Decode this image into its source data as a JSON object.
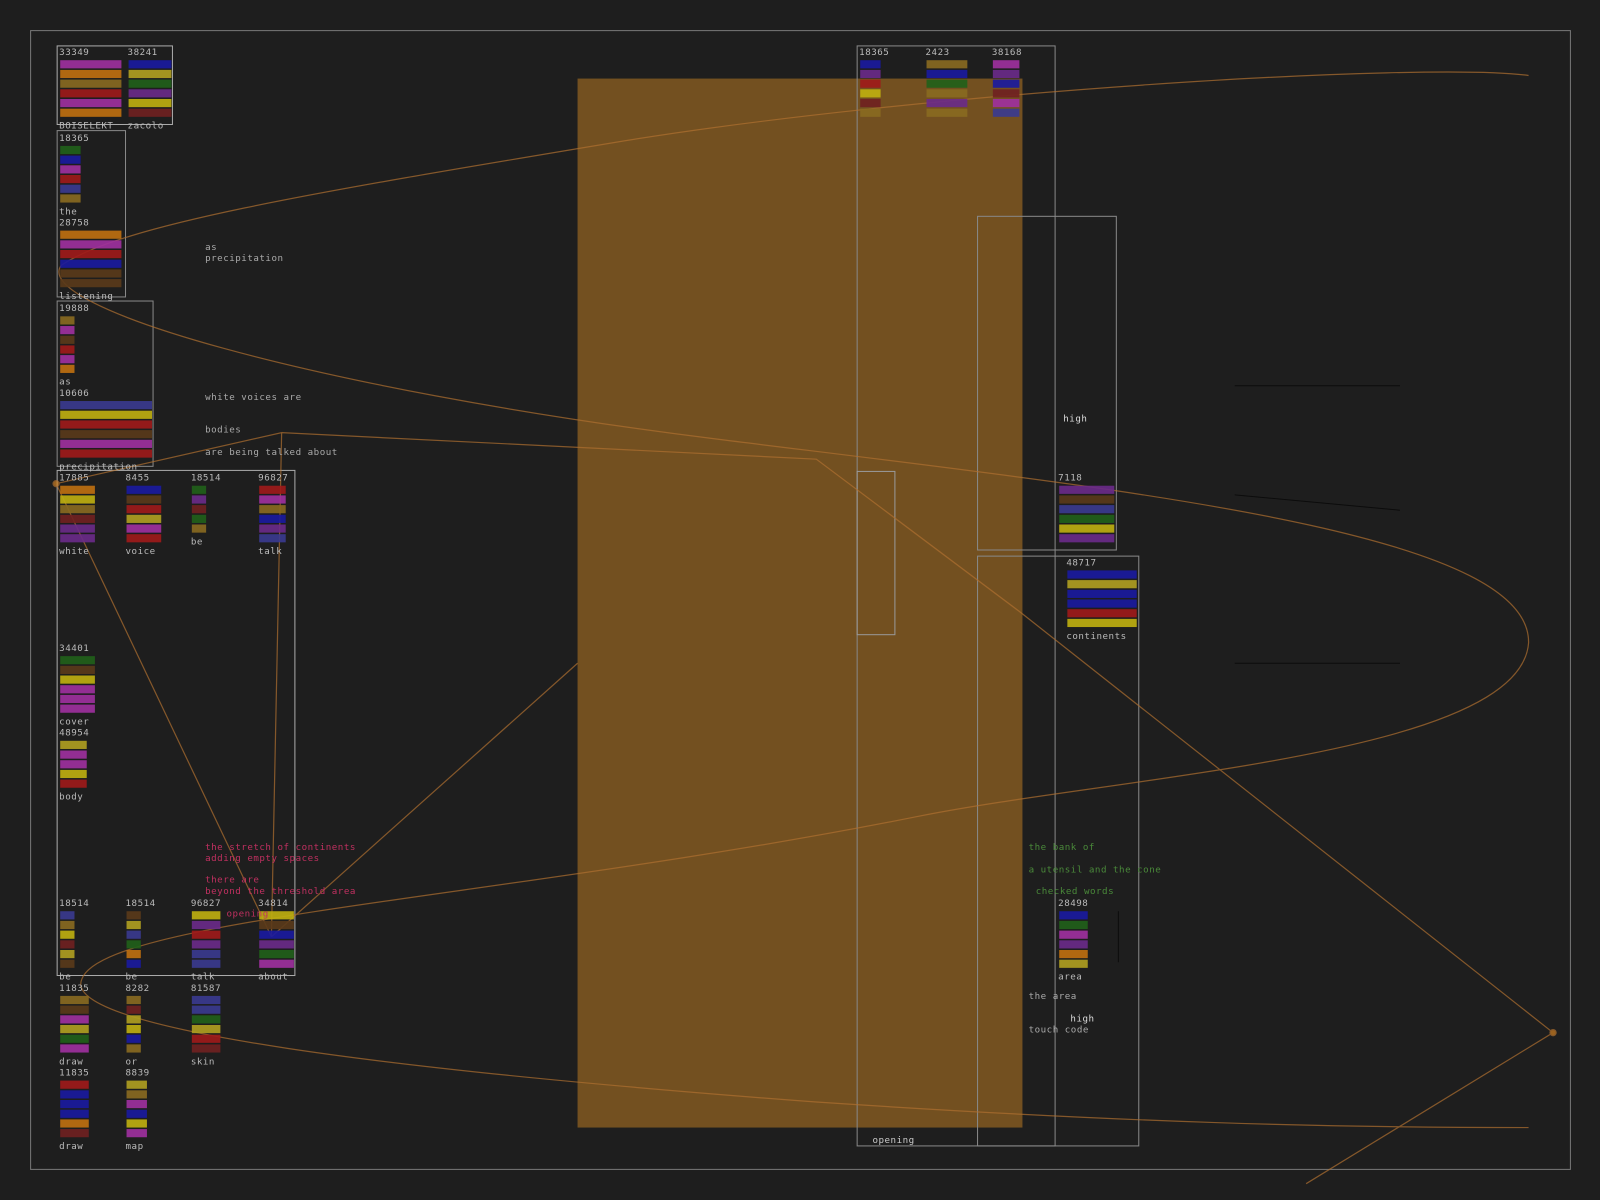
{
  "blocks": [
    {
      "number": 33349,
      "label": "BOISELEKT"
    },
    {
      "number": 38241,
      "label": "zacolo"
    },
    {
      "number": 18365,
      "label": "the"
    },
    {
      "number": 28758,
      "label": "listening"
    },
    {
      "number": 19888,
      "label": "as"
    },
    {
      "number": 10606,
      "label": "precipitation"
    },
    {
      "number": 17885,
      "label": "white"
    },
    {
      "number": 8455,
      "label": "voice"
    },
    {
      "number": 18514,
      "label": "be"
    },
    {
      "number": 96827,
      "label": "talk"
    },
    {
      "number": 34401,
      "label": "cover"
    },
    {
      "number": 48954,
      "label": "body"
    },
    {
      "number": 18514,
      "label": "be"
    },
    {
      "number": 18514,
      "label": "be"
    },
    {
      "number": 96827,
      "label": "talk"
    },
    {
      "number": 34814,
      "label": "about"
    },
    {
      "number": 11835,
      "label": "draw"
    },
    {
      "number": 8282,
      "label": "or"
    },
    {
      "number": 81587,
      "label": "skin"
    },
    {
      "number": 11835,
      "label": "draw"
    },
    {
      "number": 8839,
      "label": "map"
    },
    {
      "number": 18365
    },
    {
      "number": 2423
    },
    {
      "number": 38168
    },
    {
      "number": 7118
    },
    {
      "number": 48717,
      "label": "continents"
    },
    {
      "number": 28498,
      "label": "area"
    }
  ],
  "fragments": [
    "as",
    "precipitation",
    "white voices are",
    "bodies",
    "are being talked about",
    "the stretch of continents",
    "adding empty spaces",
    "there are",
    "beyond the threshold area",
    "opening",
    "the bank of",
    "a utensil and the cone",
    "checked words",
    "high",
    "high",
    "touch code",
    "the area",
    "opening"
  ]
}
